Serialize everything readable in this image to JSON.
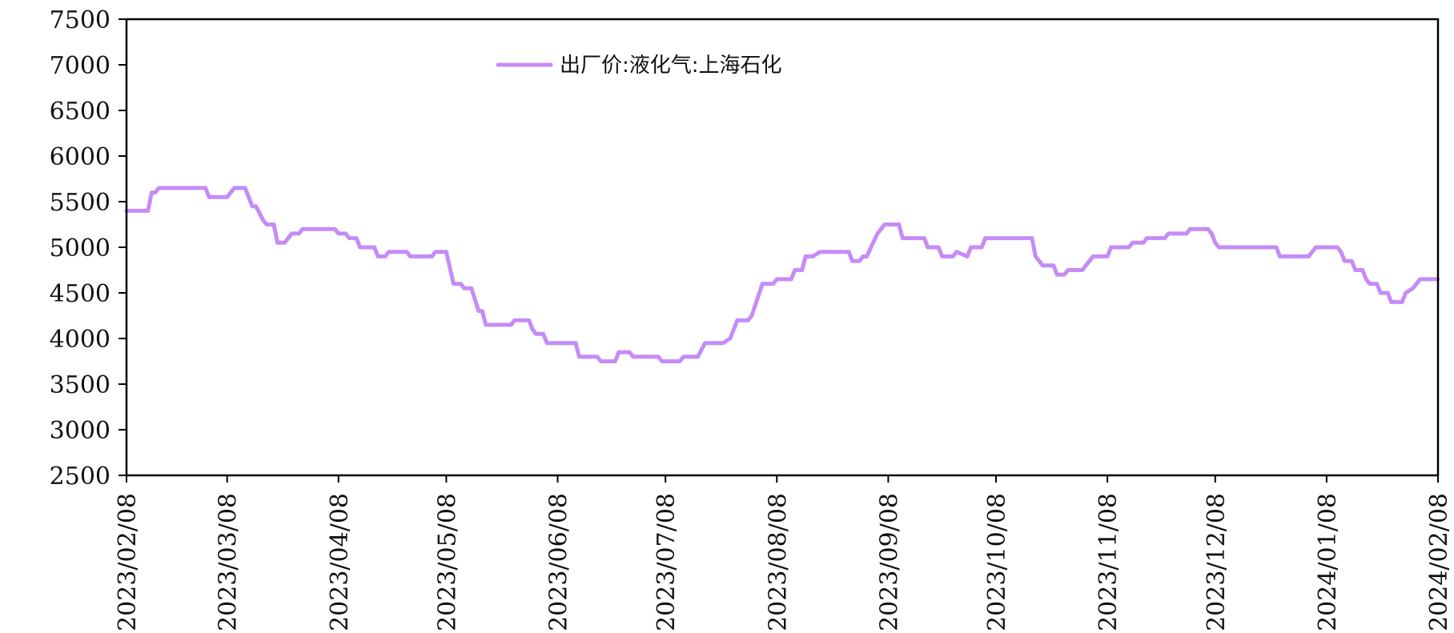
{
  "chart_data": {
    "type": "line",
    "title": "",
    "xlabel": "",
    "ylabel": "",
    "ylim": [
      2500,
      7500
    ],
    "yticks": [
      2500,
      3000,
      3500,
      4000,
      4500,
      5000,
      5500,
      6000,
      6500,
      7000,
      7500
    ],
    "xlim": [
      "2023-02-08",
      "2024-02-08"
    ],
    "xticks": [
      {
        "date": "2023-02-08",
        "label": "2023/02/08"
      },
      {
        "date": "2023-03-08",
        "label": "2023/03/08"
      },
      {
        "date": "2023-04-08",
        "label": "2023/04/08"
      },
      {
        "date": "2023-05-08",
        "label": "2023/05/08"
      },
      {
        "date": "2023-06-08",
        "label": "2023/06/08"
      },
      {
        "date": "2023-07-08",
        "label": "2023/07/08"
      },
      {
        "date": "2023-08-08",
        "label": "2023/08/08"
      },
      {
        "date": "2023-09-08",
        "label": "2023/09/08"
      },
      {
        "date": "2023-10-08",
        "label": "2023/10/08"
      },
      {
        "date": "2023-11-08",
        "label": "2023/11/08"
      },
      {
        "date": "2023-12-08",
        "label": "2023/12/08"
      },
      {
        "date": "2024-01-08",
        "label": "2024/01/08"
      },
      {
        "date": "2024-02-08",
        "label": "2024/02/08"
      }
    ],
    "grid": false,
    "legend_position": "top-center",
    "series": [
      {
        "name": "出厂价:液化气:上海石化",
        "color": "#c58cf7",
        "points": [
          [
            "2023-02-08",
            5400
          ],
          [
            "2023-02-14",
            5400
          ],
          [
            "2023-02-15",
            5600
          ],
          [
            "2023-02-16",
            5600
          ],
          [
            "2023-02-17",
            5650
          ],
          [
            "2023-03-02",
            5650
          ],
          [
            "2023-03-03",
            5550
          ],
          [
            "2023-03-08",
            5550
          ],
          [
            "2023-03-09",
            5600
          ],
          [
            "2023-03-10",
            5650
          ],
          [
            "2023-03-13",
            5650
          ],
          [
            "2023-03-14",
            5550
          ],
          [
            "2023-03-15",
            5450
          ],
          [
            "2023-03-16",
            5450
          ],
          [
            "2023-03-18",
            5300
          ],
          [
            "2023-03-19",
            5250
          ],
          [
            "2023-03-21",
            5250
          ],
          [
            "2023-03-22",
            5050
          ],
          [
            "2023-03-24",
            5050
          ],
          [
            "2023-03-26",
            5150
          ],
          [
            "2023-03-28",
            5150
          ],
          [
            "2023-03-29",
            5200
          ],
          [
            "2023-04-07",
            5200
          ],
          [
            "2023-04-08",
            5150
          ],
          [
            "2023-04-10",
            5150
          ],
          [
            "2023-04-11",
            5100
          ],
          [
            "2023-04-13",
            5100
          ],
          [
            "2023-04-14",
            5000
          ],
          [
            "2023-04-18",
            5000
          ],
          [
            "2023-04-19",
            4900
          ],
          [
            "2023-04-21",
            4900
          ],
          [
            "2023-04-22",
            4950
          ],
          [
            "2023-04-27",
            4950
          ],
          [
            "2023-04-28",
            4900
          ],
          [
            "2023-05-04",
            4900
          ],
          [
            "2023-05-05",
            4950
          ],
          [
            "2023-05-08",
            4950
          ],
          [
            "2023-05-10",
            4600
          ],
          [
            "2023-05-12",
            4600
          ],
          [
            "2023-05-13",
            4550
          ],
          [
            "2023-05-15",
            4550
          ],
          [
            "2023-05-17",
            4300
          ],
          [
            "2023-05-18",
            4300
          ],
          [
            "2023-05-19",
            4150
          ],
          [
            "2023-05-26",
            4150
          ],
          [
            "2023-05-27",
            4200
          ],
          [
            "2023-05-31",
            4200
          ],
          [
            "2023-06-01",
            4100
          ],
          [
            "2023-06-02",
            4050
          ],
          [
            "2023-06-04",
            4050
          ],
          [
            "2023-06-05",
            3950
          ],
          [
            "2023-06-13",
            3950
          ],
          [
            "2023-06-14",
            3800
          ],
          [
            "2023-06-19",
            3800
          ],
          [
            "2023-06-20",
            3750
          ],
          [
            "2023-06-24",
            3750
          ],
          [
            "2023-06-25",
            3850
          ],
          [
            "2023-06-28",
            3850
          ],
          [
            "2023-06-29",
            3800
          ],
          [
            "2023-07-06",
            3800
          ],
          [
            "2023-07-07",
            3750
          ],
          [
            "2023-07-12",
            3750
          ],
          [
            "2023-07-13",
            3800
          ],
          [
            "2023-07-17",
            3800
          ],
          [
            "2023-07-19",
            3950
          ],
          [
            "2023-07-24",
            3950
          ],
          [
            "2023-07-26",
            4000
          ],
          [
            "2023-07-28",
            4200
          ],
          [
            "2023-07-31",
            4200
          ],
          [
            "2023-08-01",
            4250
          ],
          [
            "2023-08-04",
            4600
          ],
          [
            "2023-08-07",
            4600
          ],
          [
            "2023-08-08",
            4650
          ],
          [
            "2023-08-12",
            4650
          ],
          [
            "2023-08-13",
            4750
          ],
          [
            "2023-08-15",
            4750
          ],
          [
            "2023-08-16",
            4900
          ],
          [
            "2023-08-18",
            4900
          ],
          [
            "2023-08-20",
            4950
          ],
          [
            "2023-08-28",
            4950
          ],
          [
            "2023-08-29",
            4850
          ],
          [
            "2023-08-31",
            4850
          ],
          [
            "2023-09-01",
            4900
          ],
          [
            "2023-09-02",
            4900
          ],
          [
            "2023-09-05",
            5150
          ],
          [
            "2023-09-06",
            5200
          ],
          [
            "2023-09-07",
            5250
          ],
          [
            "2023-09-11",
            5250
          ],
          [
            "2023-09-12",
            5100
          ],
          [
            "2023-09-18",
            5100
          ],
          [
            "2023-09-19",
            5000
          ],
          [
            "2023-09-22",
            5000
          ],
          [
            "2023-09-23",
            4900
          ],
          [
            "2023-09-26",
            4900
          ],
          [
            "2023-09-27",
            4950
          ],
          [
            "2023-09-30",
            4900
          ],
          [
            "2023-10-01",
            5000
          ],
          [
            "2023-10-04",
            5000
          ],
          [
            "2023-10-05",
            5100
          ],
          [
            "2023-10-18",
            5100
          ],
          [
            "2023-10-19",
            4900
          ],
          [
            "2023-10-21",
            4800
          ],
          [
            "2023-10-24",
            4800
          ],
          [
            "2023-10-25",
            4700
          ],
          [
            "2023-10-27",
            4700
          ],
          [
            "2023-10-28",
            4750
          ],
          [
            "2023-11-01",
            4750
          ],
          [
            "2023-11-02",
            4800
          ],
          [
            "2023-11-04",
            4900
          ],
          [
            "2023-11-08",
            4900
          ],
          [
            "2023-11-09",
            5000
          ],
          [
            "2023-11-14",
            5000
          ],
          [
            "2023-11-15",
            5050
          ],
          [
            "2023-11-18",
            5050
          ],
          [
            "2023-11-19",
            5100
          ],
          [
            "2023-11-24",
            5100
          ],
          [
            "2023-11-25",
            5150
          ],
          [
            "2023-11-30",
            5150
          ],
          [
            "2023-12-01",
            5200
          ],
          [
            "2023-12-06",
            5200
          ],
          [
            "2023-12-07",
            5150
          ],
          [
            "2023-12-08",
            5050
          ],
          [
            "2023-12-09",
            5000
          ],
          [
            "2023-12-25",
            5000
          ],
          [
            "2023-12-26",
            4900
          ],
          [
            "2024-01-03",
            4900
          ],
          [
            "2024-01-05",
            5000
          ],
          [
            "2024-01-11",
            5000
          ],
          [
            "2024-01-12",
            4950
          ],
          [
            "2024-01-13",
            4850
          ],
          [
            "2024-01-15",
            4850
          ],
          [
            "2024-01-16",
            4750
          ],
          [
            "2024-01-18",
            4750
          ],
          [
            "2024-01-19",
            4650
          ],
          [
            "2024-01-20",
            4600
          ],
          [
            "2024-01-22",
            4600
          ],
          [
            "2024-01-23",
            4500
          ],
          [
            "2024-01-25",
            4500
          ],
          [
            "2024-01-26",
            4400
          ],
          [
            "2024-01-29",
            4400
          ],
          [
            "2024-01-30",
            4500
          ],
          [
            "2024-02-01",
            4550
          ],
          [
            "2024-02-03",
            4650
          ],
          [
            "2024-02-08",
            4650
          ]
        ]
      }
    ]
  }
}
